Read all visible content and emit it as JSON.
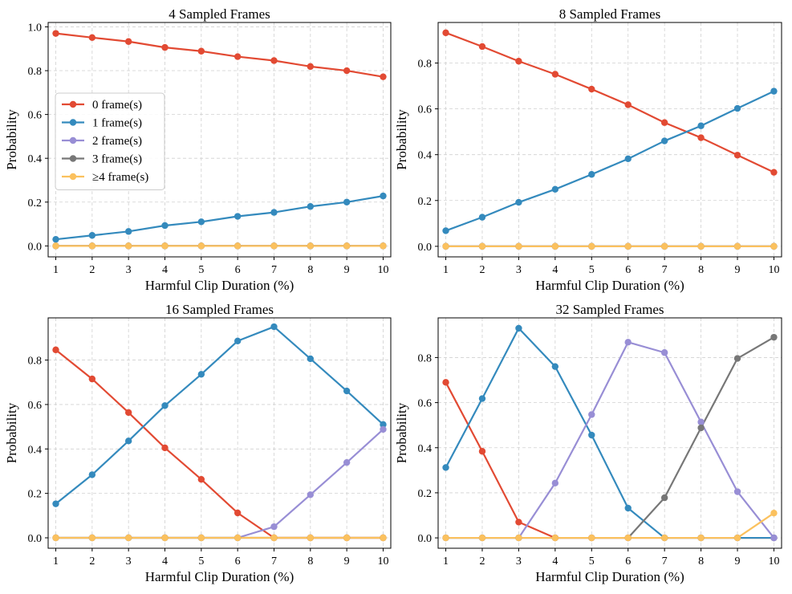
{
  "figure": {
    "colors": [
      "#e24a33",
      "#348abd",
      "#988ed5",
      "#777777",
      "#fbc15e"
    ]
  },
  "chart_data": [
    {
      "type": "line",
      "title": "4 Sampled Frames",
      "xlabel": "Harmful Clip Duration (%)",
      "ylabel": "Probability",
      "x": [
        1,
        2,
        3,
        4,
        5,
        6,
        7,
        8,
        9,
        10
      ],
      "xticks": [
        "1",
        "2",
        "3",
        "4",
        "5",
        "6",
        "7",
        "8",
        "9",
        "10"
      ],
      "yticks": [
        0.0,
        0.2,
        0.4,
        0.6,
        0.8,
        1.0
      ],
      "ytick_labels": [
        "0.0",
        "0.2",
        "0.4",
        "0.6",
        "0.8",
        "1.0"
      ],
      "ylim": [
        -0.05,
        1.02
      ],
      "grid": true,
      "legend": "center-left",
      "series": [
        {
          "name": "0 frame(s)",
          "color": "#e24a33",
          "values": [
            0.97,
            0.951,
            0.933,
            0.906,
            0.889,
            0.864,
            0.846,
            0.819,
            0.8,
            0.772
          ]
        },
        {
          "name": "1 frame(s)",
          "color": "#348abd",
          "values": [
            0.03,
            0.048,
            0.066,
            0.093,
            0.11,
            0.135,
            0.153,
            0.18,
            0.2,
            0.228
          ]
        },
        {
          "name": "2 frame(s)",
          "color": "#988ed5",
          "values": [
            0,
            0,
            0,
            0,
            0,
            0,
            0,
            0,
            0,
            0
          ]
        },
        {
          "name": "3 frame(s)",
          "color": "#777777",
          "values": [
            0,
            0,
            0,
            0,
            0,
            0,
            0,
            0,
            0,
            0
          ]
        },
        {
          "name": "≥4 frame(s)",
          "color": "#fbc15e",
          "values": [
            0,
            0,
            0,
            0,
            0,
            0,
            0,
            0,
            0,
            0
          ]
        }
      ]
    },
    {
      "type": "line",
      "title": "8 Sampled Frames",
      "xlabel": "Harmful Clip Duration (%)",
      "ylabel": "Probability",
      "x": [
        1,
        2,
        3,
        4,
        5,
        6,
        7,
        8,
        9,
        10
      ],
      "xticks": [
        "1",
        "2",
        "3",
        "4",
        "5",
        "6",
        "7",
        "8",
        "9",
        "10"
      ],
      "yticks": [
        0.0,
        0.2,
        0.4,
        0.6,
        0.8
      ],
      "ytick_labels": [
        "0.0",
        "0.2",
        "0.4",
        "0.6",
        "0.8"
      ],
      "ylim": [
        -0.046,
        0.977
      ],
      "grid": true,
      "series": [
        {
          "name": "0 frame(s)",
          "color": "#e24a33",
          "values": [
            0.932,
            0.872,
            0.808,
            0.751,
            0.686,
            0.618,
            0.54,
            0.474,
            0.398,
            0.323
          ]
        },
        {
          "name": "1 frame(s)",
          "color": "#348abd",
          "values": [
            0.068,
            0.127,
            0.192,
            0.249,
            0.314,
            0.382,
            0.46,
            0.526,
            0.602,
            0.677
          ]
        },
        {
          "name": "2 frame(s)",
          "color": "#988ed5",
          "values": [
            0,
            0,
            0,
            0,
            0,
            0,
            0,
            0,
            0,
            0
          ]
        },
        {
          "name": "3 frame(s)",
          "color": "#777777",
          "values": [
            0,
            0,
            0,
            0,
            0,
            0,
            0,
            0,
            0,
            0
          ]
        },
        {
          "name": "≥4 frame(s)",
          "color": "#fbc15e",
          "values": [
            0,
            0,
            0,
            0,
            0,
            0,
            0,
            0,
            0,
            0
          ]
        }
      ]
    },
    {
      "type": "line",
      "title": "16 Sampled Frames",
      "xlabel": "Harmful Clip Duration (%)",
      "ylabel": "Probability",
      "x": [
        1,
        2,
        3,
        4,
        5,
        6,
        7,
        8,
        9,
        10
      ],
      "xticks": [
        "1",
        "2",
        "3",
        "4",
        "5",
        "6",
        "7",
        "8",
        "9",
        "10"
      ],
      "yticks": [
        0.0,
        0.2,
        0.4,
        0.6,
        0.8
      ],
      "ytick_labels": [
        "0.0",
        "0.2",
        "0.4",
        "0.6",
        "0.8"
      ],
      "ylim": [
        -0.047,
        0.99
      ],
      "grid": true,
      "series": [
        {
          "name": "0 frame(s)",
          "color": "#e24a33",
          "values": [
            0.846,
            0.715,
            0.564,
            0.405,
            0.263,
            0.112,
            0.0,
            0.0,
            0.0,
            0.0
          ]
        },
        {
          "name": "1 frame(s)",
          "color": "#348abd",
          "values": [
            0.153,
            0.284,
            0.436,
            0.595,
            0.736,
            0.886,
            0.95,
            0.806,
            0.661,
            0.51
          ]
        },
        {
          "name": "2 frame(s)",
          "color": "#988ed5",
          "values": [
            0,
            0,
            0,
            0,
            0,
            0,
            0.05,
            0.194,
            0.339,
            0.488
          ]
        },
        {
          "name": "3 frame(s)",
          "color": "#777777",
          "values": [
            0,
            0,
            0,
            0,
            0,
            0,
            0,
            0,
            0,
            0
          ]
        },
        {
          "name": "≥4 frame(s)",
          "color": "#fbc15e",
          "values": [
            0,
            0,
            0,
            0,
            0,
            0,
            0,
            0,
            0,
            0
          ]
        }
      ]
    },
    {
      "type": "line",
      "title": "32 Sampled Frames",
      "xlabel": "Harmful Clip Duration (%)",
      "ylabel": "Probability",
      "x": [
        1,
        2,
        3,
        4,
        5,
        6,
        7,
        8,
        9,
        10
      ],
      "xticks": [
        "1",
        "2",
        "3",
        "4",
        "5",
        "6",
        "7",
        "8",
        "9",
        "10"
      ],
      "yticks": [
        0.0,
        0.2,
        0.4,
        0.6,
        0.8
      ],
      "ytick_labels": [
        "0.0",
        "0.2",
        "0.4",
        "0.6",
        "0.8"
      ],
      "ylim": [
        -0.046,
        0.976
      ],
      "grid": true,
      "series": [
        {
          "name": "0 frame(s)",
          "color": "#e24a33",
          "values": [
            0.69,
            0.384,
            0.07,
            0.0,
            0.0,
            0.0,
            0.0,
            0.0,
            0.0,
            0.0
          ]
        },
        {
          "name": "1 frame(s)",
          "color": "#348abd",
          "values": [
            0.312,
            0.618,
            0.93,
            0.76,
            0.456,
            0.132,
            0.0,
            0.0,
            0.0,
            0.0
          ]
        },
        {
          "name": "2 frame(s)",
          "color": "#988ed5",
          "values": [
            0,
            0,
            0,
            0.243,
            0.547,
            0.868,
            0.822,
            0.514,
            0.205,
            0.0
          ]
        },
        {
          "name": "3 frame(s)",
          "color": "#777777",
          "values": [
            0,
            0,
            0,
            0,
            0,
            0.0,
            0.178,
            0.488,
            0.796,
            0.89
          ]
        },
        {
          "name": "≥4 frame(s)",
          "color": "#fbc15e",
          "values": [
            0,
            0,
            0,
            0,
            0,
            0,
            0,
            0,
            0,
            0.11
          ]
        }
      ]
    }
  ]
}
